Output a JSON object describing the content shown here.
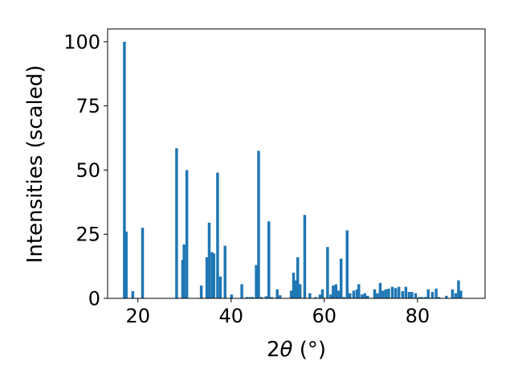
{
  "chart_data": {
    "type": "bar",
    "title": "",
    "xlabel": "2θ (°)",
    "xlabel_parts": {
      "prefix": "2",
      "symbol": "θ",
      "suffix": " (°)"
    },
    "ylabel": "Intensities (scaled)",
    "xlim": [
      13.5,
      94.5
    ],
    "ylim": [
      0,
      105
    ],
    "xticks": [
      20,
      40,
      60,
      80
    ],
    "yticks": [
      0,
      25,
      50,
      75,
      100
    ],
    "bar_width": 0.6,
    "grid": false,
    "legend": "none",
    "color": "#1f77b4",
    "x": [
      17.1,
      17.5,
      18.9,
      21.0,
      28.3,
      29.6,
      29.9,
      30.5,
      33.6,
      34.8,
      35.3,
      35.9,
      36.3,
      37.1,
      37.7,
      38.7,
      40.1,
      42.3,
      43.4,
      44.1,
      44.6,
      45.4,
      45.9,
      46.5,
      47.5,
      48.1,
      48.7,
      49.9,
      50.5,
      52.9,
      53.4,
      53.9,
      54.3,
      54.8,
      55.8,
      56.9,
      58.1,
      59.1,
      59.6,
      60.7,
      61.4,
      61.9,
      62.5,
      63.1,
      63.6,
      64.2,
      64.9,
      65.5,
      66.3,
      67.0,
      67.4,
      68.1,
      68.7,
      69.3,
      70.8,
      71.4,
      72.0,
      72.6,
      73.2,
      73.8,
      74.6,
      75.3,
      76.0,
      76.8,
      77.5,
      78.2,
      78.8,
      79.6,
      80.4,
      81.0,
      81.7,
      82.3,
      83.2,
      84.0,
      84.6,
      86.2,
      87.5,
      88.2,
      88.8,
      89.3
    ],
    "values": [
      100,
      26,
      2.8,
      27.5,
      58.5,
      15,
      21,
      50,
      5,
      16,
      29.5,
      18,
      17.5,
      49,
      8.5,
      20.5,
      1.5,
      5.5,
      0.5,
      0.5,
      0.5,
      13,
      57.5,
      0.5,
      0.8,
      30,
      0.5,
      3.5,
      1.2,
      3,
      10,
      7,
      16,
      5.5,
      32.5,
      2,
      0.5,
      1.5,
      3.5,
      20,
      1.5,
      5,
      5.5,
      3,
      15.5,
      0.5,
      26.5,
      2,
      3,
      3.5,
      5.5,
      1.5,
      2,
      1,
      3.5,
      2,
      6,
      3,
      3.5,
      3.8,
      4.5,
      4,
      4.5,
      2.8,
      4.5,
      2.5,
      2.5,
      2,
      0.5,
      0.5,
      0.5,
      3.5,
      2.5,
      3.8,
      0.5,
      1,
      3.5,
      2,
      7,
      3
    ]
  }
}
